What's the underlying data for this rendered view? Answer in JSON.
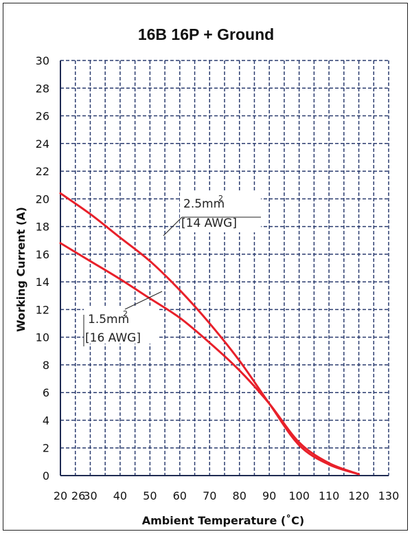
{
  "chart_data": {
    "type": "line",
    "title": "16B 16P + Ground",
    "xlabel": "Ambient Temperature (˚C)",
    "ylabel": "Working Current (A)",
    "xlim": [
      20,
      130
    ],
    "ylim": [
      0,
      30
    ],
    "x_ticks": [
      20,
      26,
      30,
      40,
      50,
      60,
      70,
      80,
      90,
      100,
      110,
      120,
      130
    ],
    "y_ticks": [
      0,
      2,
      4,
      6,
      8,
      10,
      12,
      14,
      16,
      18,
      20,
      22,
      24,
      26,
      28,
      30
    ],
    "grid": true,
    "series": [
      {
        "color": "#e8202a",
        "x": [
          20,
          30,
          40,
          50,
          60,
          70,
          80,
          90,
          100,
          110,
          120
        ],
        "y": [
          20.4,
          18.9,
          17.2,
          15.5,
          13.4,
          11.0,
          8.3,
          5.2,
          2.2,
          0.8,
          0.1
        ]
      },
      {
        "color": "#e8202a",
        "x": [
          20,
          30,
          40,
          50,
          60,
          70,
          80,
          90,
          100,
          110,
          120
        ],
        "y": [
          16.8,
          15.5,
          14.2,
          12.8,
          11.4,
          9.6,
          7.6,
          5.2,
          2.4,
          0.9,
          0.1
        ]
      }
    ],
    "annotations": [
      {
        "line1": "2.5mm",
        "sup": "2",
        "line2": "[14 AWG]"
      },
      {
        "line1": "1.5mm",
        "sup": "2",
        "line2": "[16 AWG]"
      }
    ]
  }
}
